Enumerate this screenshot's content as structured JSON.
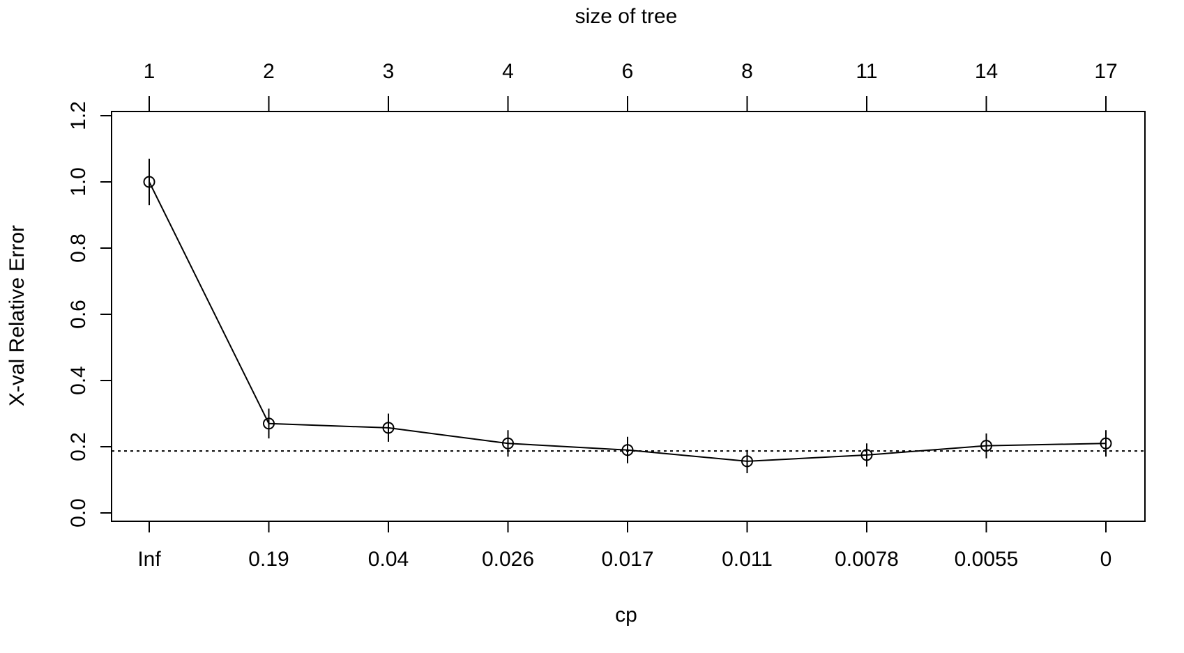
{
  "chart_data": {
    "type": "line",
    "title": "",
    "xlabel": "cp",
    "ylabel": "X-val Relative Error",
    "top_axis_label": "size of tree",
    "categories": [
      "Inf",
      "0.19",
      "0.04",
      "0.026",
      "0.017",
      "0.011",
      "0.0078",
      "0.0055",
      "0"
    ],
    "top_categories": [
      "1",
      "2",
      "3",
      "4",
      "6",
      "8",
      "11",
      "14",
      "17"
    ],
    "series": [
      {
        "values": [
          1.0,
          0.27,
          0.257,
          0.21,
          0.19,
          0.156,
          0.175,
          0.203,
          0.21
        ],
        "error_low": [
          0.93,
          0.225,
          0.215,
          0.17,
          0.15,
          0.12,
          0.14,
          0.165,
          0.17
        ],
        "error_high": [
          1.07,
          0.315,
          0.3,
          0.25,
          0.23,
          0.19,
          0.21,
          0.24,
          0.25
        ]
      }
    ],
    "reference_line": 0.187,
    "ylim": [
      0.0,
      1.2
    ],
    "yticks": [
      "0.0",
      "0.2",
      "0.4",
      "0.6",
      "0.8",
      "1.0",
      "1.2"
    ],
    "grid": false,
    "legend": "none",
    "colors": {
      "line": "#000000",
      "background": "#ffffff"
    }
  }
}
